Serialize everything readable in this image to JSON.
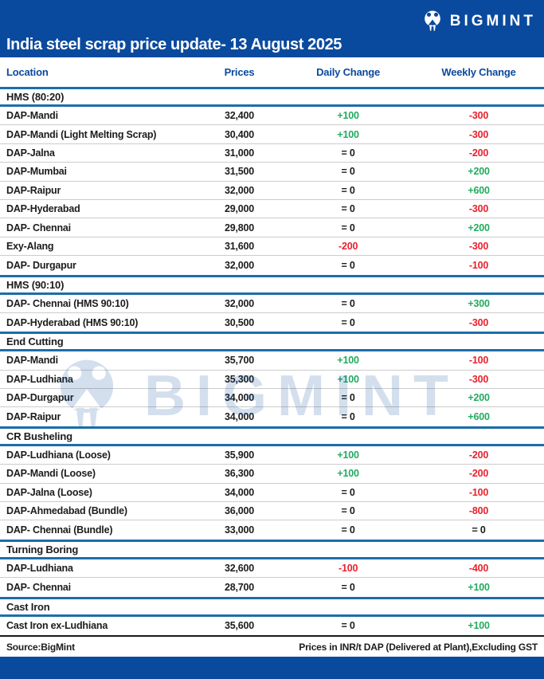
{
  "header": {
    "title": "India steel scrap price update- 13 August 2025",
    "brand": "BIGMINT"
  },
  "columns": [
    "Location",
    "Prices",
    "Daily Change",
    "Weekly Change"
  ],
  "sections": [
    {
      "name": "HMS (80:20)",
      "rows": [
        {
          "location": "DAP-Mandi",
          "price": "32,400",
          "daily": "+100",
          "weekly": "-300"
        },
        {
          "location": "DAP-Mandi (Light Melting Scrap)",
          "price": "30,400",
          "daily": "+100",
          "weekly": "-300"
        },
        {
          "location": "DAP-Jalna",
          "price": "31,000",
          "daily": "= 0",
          "weekly": "-200"
        },
        {
          "location": "DAP-Mumbai",
          "price": "31,500",
          "daily": "= 0",
          "weekly": "+200"
        },
        {
          "location": "DAP-Raipur",
          "price": "32,000",
          "daily": "= 0",
          "weekly": "+600"
        },
        {
          "location": "DAP-Hyderabad",
          "price": "29,000",
          "daily": "= 0",
          "weekly": "-300"
        },
        {
          "location": "DAP- Chennai",
          "price": "29,800",
          "daily": "= 0",
          "weekly": "+200"
        },
        {
          "location": "Exy-Alang",
          "price": "31,600",
          "daily": "-200",
          "weekly": "-300"
        },
        {
          "location": "DAP- Durgapur",
          "price": "32,000",
          "daily": "= 0",
          "weekly": "-100"
        }
      ]
    },
    {
      "name": "HMS (90:10)",
      "rows": [
        {
          "location": "DAP- Chennai (HMS 90:10)",
          "price": "32,000",
          "daily": "= 0",
          "weekly": "+300"
        },
        {
          "location": "DAP-Hyderabad (HMS 90:10)",
          "price": "30,500",
          "daily": "= 0",
          "weekly": "-300"
        }
      ]
    },
    {
      "name": "End Cutting",
      "rows": [
        {
          "location": "DAP-Mandi",
          "price": "35,700",
          "daily": "+100",
          "weekly": "-100"
        },
        {
          "location": "DAP-Ludhiana",
          "price": "35,300",
          "daily": "+100",
          "weekly": "-300"
        },
        {
          "location": "DAP-Durgapur",
          "price": "34,000",
          "daily": "= 0",
          "weekly": "+200"
        },
        {
          "location": "DAP-Raipur",
          "price": "34,000",
          "daily": "= 0",
          "weekly": "+600"
        }
      ]
    },
    {
      "name": "CR Busheling",
      "rows": [
        {
          "location": "DAP-Ludhiana (Loose)",
          "price": "35,900",
          "daily": "+100",
          "weekly": "-200"
        },
        {
          "location": "DAP-Mandi (Loose)",
          "price": "36,300",
          "daily": "+100",
          "weekly": "-200"
        },
        {
          "location": "DAP-Jalna (Loose)",
          "price": "34,000",
          "daily": "= 0",
          "weekly": "-100"
        },
        {
          "location": "DAP-Ahmedabad (Bundle)",
          "price": "36,000",
          "daily": "= 0",
          "weekly": "-800"
        },
        {
          "location": "DAP- Chennai (Bundle)",
          "price": "33,000",
          "daily": "= 0",
          "weekly": "= 0"
        }
      ]
    },
    {
      "name": "Turning Boring",
      "rows": [
        {
          "location": "DAP-Ludhiana",
          "price": "32,600",
          "daily": "-100",
          "weekly": "-400"
        },
        {
          "location": "DAP- Chennai",
          "price": "28,700",
          "daily": "= 0",
          "weekly": "+100"
        }
      ]
    },
    {
      "name": "Cast Iron",
      "rows": [
        {
          "location": "Cast Iron ex-Ludhiana",
          "price": "35,600",
          "daily": "= 0",
          "weekly": "+100"
        }
      ]
    }
  ],
  "watermark": {
    "text": "BIGMINT"
  },
  "footer": {
    "source": "Source:BigMint",
    "note": "Prices in INR/t DAP (Delivered at Plant),Excluding GST"
  },
  "colors": {
    "brand_blue": "#0a4a9e",
    "divider_blue": "#1c6ea8",
    "positive_green": "#22ab5e",
    "negative_red": "#e8212d",
    "row_line_gray": "#cccccc",
    "text_black": "#1c1c1c"
  }
}
